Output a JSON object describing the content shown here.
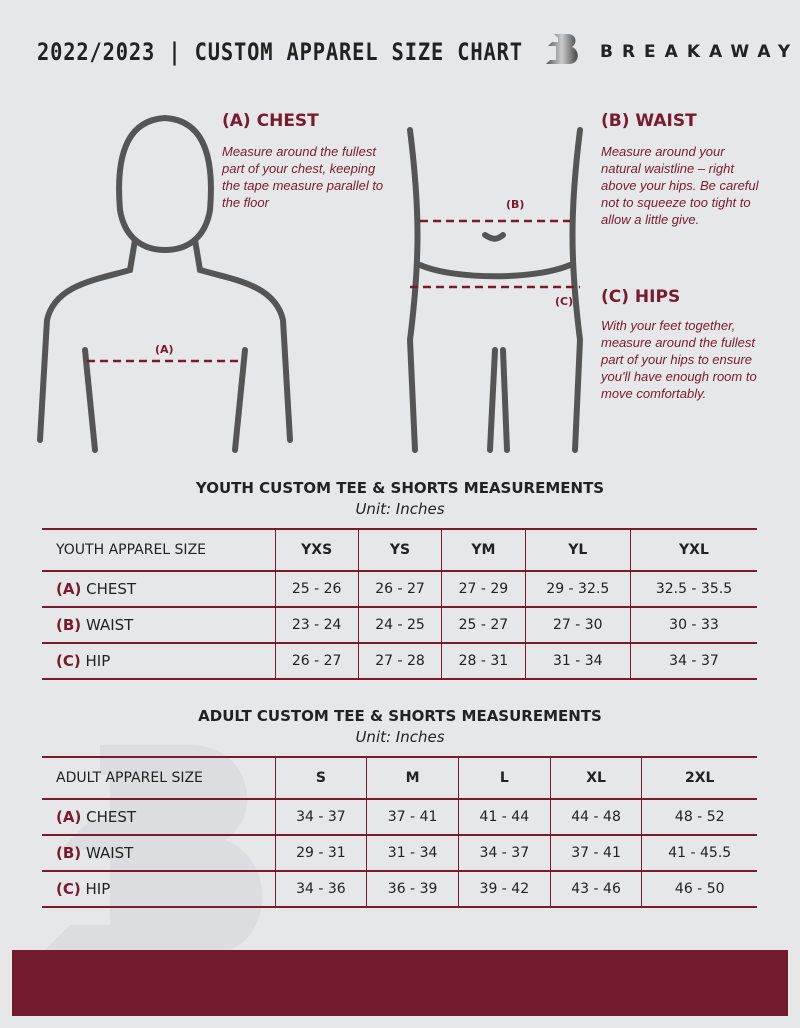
{
  "header": {
    "title": "2022/2023 | CUSTOM APPAREL SIZE CHART",
    "brand": "BREAKAWAY"
  },
  "guide": {
    "chest": {
      "title": "(A) CHEST",
      "desc": "Measure around the fullest part of your chest, keeping the tape measure parallel to the floor",
      "marker": "(A)"
    },
    "waist": {
      "title": "(B) WAIST",
      "desc": "Measure around your natural waistline – right above your hips. Be careful not to squeeze too tight to allow a little give.",
      "marker": "(B)"
    },
    "hips": {
      "title": "(C) HIPS",
      "desc": "With your feet together, measure around the fullest part of your hips to ensure you'll have enough room to move comfortably.",
      "marker": "(C)"
    }
  },
  "colors": {
    "accent": "#7a1a2e",
    "background": "#e6e7e9"
  },
  "youth": {
    "heading": "YOUTH CUSTOM TEE & SHORTS MEASUREMENTS",
    "unit": "Unit: Inches",
    "header": [
      "YOUTH APPAREL SIZE",
      "YXS",
      "YS",
      "YM",
      "YL",
      "YXL"
    ],
    "rows": [
      {
        "letter": "(A)",
        "label": "CHEST",
        "values": [
          "25 - 26",
          "26 - 27",
          "27 - 29",
          "29 - 32.5",
          "32.5 - 35.5"
        ]
      },
      {
        "letter": "(B)",
        "label": "WAIST",
        "values": [
          "23 - 24",
          "24 - 25",
          "25 - 27",
          "27 - 30",
          "30 - 33"
        ]
      },
      {
        "letter": "(C)",
        "label": "HIP",
        "values": [
          "26 - 27",
          "27 - 28",
          "28 - 31",
          "31 - 34",
          "34 - 37"
        ]
      }
    ]
  },
  "adult": {
    "heading": "ADULT CUSTOM TEE & SHORTS MEASUREMENTS",
    "unit": "Unit: Inches",
    "header": [
      "ADULT APPAREL SIZE",
      "S",
      "M",
      "L",
      "XL",
      "2XL"
    ],
    "rows": [
      {
        "letter": "(A)",
        "label": "CHEST",
        "values": [
          "34 - 37",
          "37 - 41",
          "41 - 44",
          "44 - 48",
          "48 - 52"
        ]
      },
      {
        "letter": "(B)",
        "label": "WAIST",
        "values": [
          "29 - 31",
          "31 - 34",
          "34 - 37",
          "37 - 41",
          "41 - 45.5"
        ]
      },
      {
        "letter": "(C)",
        "label": "HIP",
        "values": [
          "34 - 36",
          "36 - 39",
          "39 - 42",
          "43 - 46",
          "46 - 50"
        ]
      }
    ]
  }
}
